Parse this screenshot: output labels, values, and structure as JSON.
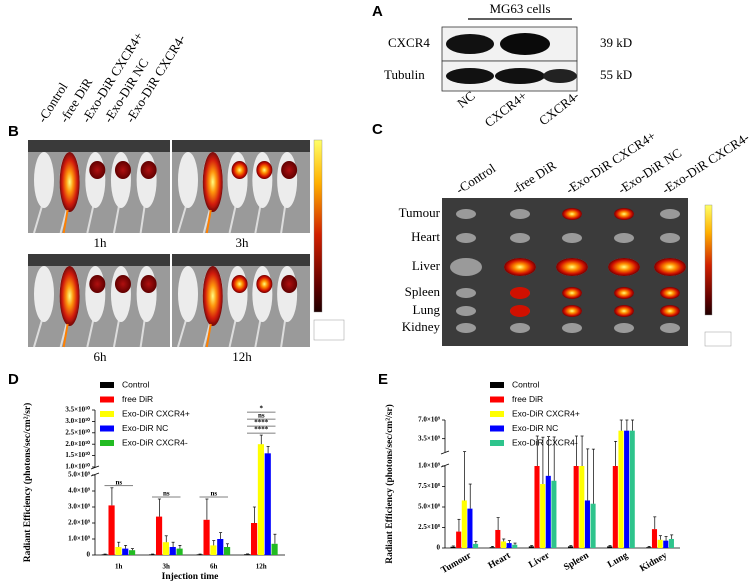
{
  "panel_a": {
    "letter": "A",
    "header": "MG63 cells",
    "rows": [
      "CXCR4",
      "Tubulin"
    ],
    "sizes": [
      "39 kD",
      "55 kD"
    ],
    "lanes": [
      "NC",
      "CXCR4+",
      "CXCR4-"
    ]
  },
  "panel_b": {
    "letter": "B",
    "groups": [
      "-Control",
      "-free DiR",
      "-Exo-DiR CXCR4+",
      "-Exo-DiR NC",
      "-Exo-DiR CXCR4-"
    ],
    "times": [
      "1h",
      "3h",
      "6h",
      "12h"
    ]
  },
  "panel_c": {
    "letter": "C",
    "groups": [
      "-Control",
      "-free DiR",
      "-Exo-DiR CXCR4+",
      "-Exo-DiR NC",
      "-Exo-DiR CXCR4-"
    ],
    "organs": [
      "Tumour",
      "Heart",
      "Liver",
      "Spleen",
      "Lung",
      "Kidney"
    ]
  },
  "chart_data": [
    {
      "type": "bar",
      "letter": "D",
      "ylabel": "Radiant Efficiency (photons/sec/cm²/sr)",
      "xlabel": "Injection time",
      "categories": [
        "1h",
        "3h",
        "6h",
        "12h"
      ],
      "series": [
        {
          "name": "Control",
          "color": "#000000",
          "values": [
            40000000,
            40000000,
            40000000,
            50000000
          ],
          "errors": [
            20000000,
            20000000,
            20000000,
            20000000
          ]
        },
        {
          "name": "free DiR",
          "color": "#ff0000",
          "values": [
            3100000000,
            2400000000,
            2200000000,
            2000000000
          ],
          "errors": [
            1100000000,
            1100000000,
            1300000000,
            1000000000
          ]
        },
        {
          "name": "Exo-DiR CXCR4+",
          "color": "#ffff00",
          "values": [
            500000000,
            800000000,
            600000000,
            20000000000
          ],
          "errors": [
            300000000,
            400000000,
            300000000,
            4000000000
          ]
        },
        {
          "name": "Exo-DiR NC",
          "color": "#0000ff",
          "values": [
            400000000,
            500000000,
            1000000000,
            16000000000
          ],
          "errors": [
            200000000,
            300000000,
            400000000,
            3000000000
          ]
        },
        {
          "name": "Exo-DiR CXCR4-",
          "color": "#22bb22",
          "values": [
            300000000,
            400000000,
            500000000,
            700000000
          ],
          "errors": [
            100000000,
            200000000,
            200000000,
            600000000
          ]
        }
      ],
      "ylim": [
        0,
        35000000000
      ],
      "axis_break": [
        5000000000,
        10000000000
      ],
      "yticks": [
        0,
        {
          "value": 1000000000,
          "label": "1.0×10⁹"
        },
        {
          "value": 2000000000,
          "label": "2.0×10⁹"
        },
        {
          "value": 3000000000,
          "label": "3.0×10⁹"
        },
        {
          "value": 4000000000,
          "label": "4.0×10⁹"
        },
        {
          "value": 5000000000,
          "label": "5.0×10⁹"
        },
        {
          "value": 10000000000,
          "label": "1.0×10¹⁰"
        },
        {
          "value": 15000000000,
          "label": "1.5×10¹⁰"
        },
        {
          "value": 20000000000,
          "label": "2.0×10¹⁰"
        },
        {
          "value": 25000000000,
          "label": "2.5×10¹⁰"
        },
        {
          "value": 30000000000,
          "label": "3.0×10¹⁰"
        },
        {
          "value": 35000000000,
          "label": "3.5×10¹⁰"
        }
      ],
      "annotations": [
        {
          "text": "ns",
          "category": "1h"
        },
        {
          "text": "ns",
          "category": "3h"
        },
        {
          "text": "ns",
          "category": "6h"
        },
        {
          "text": "****",
          "category": "12h"
        },
        {
          "text": "****",
          "category": "12h"
        },
        {
          "text": "ns",
          "category": "12h"
        },
        {
          "text": "*",
          "category": "12h"
        }
      ]
    },
    {
      "type": "bar",
      "letter": "E",
      "ylabel": "Radiant Efficiency (photons/sec/cm²/sr)",
      "categories": [
        "Tumour",
        "Heart",
        "Liver",
        "Spleen",
        "Lung",
        "Kidney"
      ],
      "series": [
        {
          "name": "Control",
          "color": "#000000",
          "values": [
            15000000,
            10000000,
            20000000,
            20000000,
            20000000,
            10000000
          ],
          "errors": [
            10000000,
            10000000,
            10000000,
            10000000,
            10000000,
            10000000
          ]
        },
        {
          "name": "free DiR",
          "color": "#ff0000",
          "values": [
            200000000,
            220000000,
            1000000000,
            1000000000,
            1000000000,
            230000000
          ],
          "errors": [
            150000000,
            150000000,
            3000000000,
            3000000000,
            2000000000,
            150000000
          ]
        },
        {
          "name": "Exo-DiR CXCR4+",
          "color": "#ffff00",
          "values": [
            580000000,
            80000000,
            780000000,
            1000000000,
            5000000000,
            100000000
          ],
          "errors": [
            500000000,
            30000000,
            3000000000,
            3000000000,
            2000000000,
            50000000
          ]
        },
        {
          "name": "Exo-DiR NC",
          "color": "#0000ff",
          "values": [
            480000000,
            60000000,
            880000000,
            580000000,
            5000000000,
            90000000
          ],
          "errors": [
            300000000,
            30000000,
            3000000000,
            1000000000,
            2000000000,
            50000000
          ]
        },
        {
          "name": "Exo-DiR CXCR4-",
          "color": "#2ec48c",
          "values": [
            50000000,
            40000000,
            820000000,
            540000000,
            5000000000,
            110000000
          ],
          "errors": [
            30000000,
            20000000,
            3000000000,
            1000000000,
            2000000000,
            50000000
          ]
        }
      ],
      "ylim": [
        0,
        7000000000
      ],
      "axis_break": [
        1000000000,
        1000000000
      ],
      "yticks": [
        0,
        {
          "value": 250000000,
          "label": "2.5×10⁸"
        },
        {
          "value": 500000000,
          "label": "5.0×10⁸"
        },
        {
          "value": 750000000,
          "label": "7.5×10⁸"
        },
        {
          "value": 1000000000,
          "label": "1.0×10⁹"
        },
        {
          "value": 3500000000,
          "label": "3.5×10⁹"
        },
        {
          "value": 7000000000,
          "label": "7.0×10⁹"
        }
      ]
    }
  ]
}
